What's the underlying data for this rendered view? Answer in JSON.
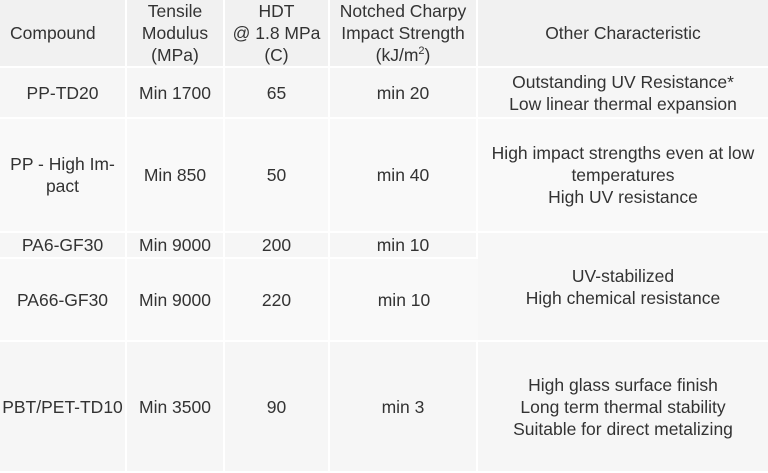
{
  "headers": {
    "compound": "Compound",
    "tensile": [
      "Tensile",
      "Modulus",
      "(MPa)"
    ],
    "hdt": [
      "HDT",
      "@ 1.8 MPa",
      "(C)"
    ],
    "charpy_line1": "Notched Charpy",
    "charpy_line2": "Impact Strength",
    "charpy_unit_base": "(kJ/m",
    "charpy_unit_sup": "2",
    "charpy_unit_close": ")",
    "other": "Other Characteristic"
  },
  "rows": [
    {
      "compound": [
        "PP-TD20"
      ],
      "tensile": "Min 1700",
      "hdt": "65",
      "charpy": "min 20",
      "other": [
        "Outstanding UV Resistance*",
        "Low linear thermal expansion"
      ]
    },
    {
      "compound": [
        "PP - High Im-",
        "pact"
      ],
      "tensile": "Min 850",
      "hdt": "50",
      "charpy": "min 40",
      "other": [
        "High impact strengths even at low",
        "temperatures",
        "High UV resistance"
      ]
    },
    {
      "compound": [
        "PA6-GF30"
      ],
      "tensile": "Min 9000",
      "hdt": "200",
      "charpy": "min 10"
    },
    {
      "compound": [
        "PA66-GF30"
      ],
      "tensile": "Min 9000",
      "hdt": "220",
      "charpy": "min 10"
    },
    {
      "compound": [
        "PBT/PET-TD10"
      ],
      "tensile": "Min 3500",
      "hdt": "90",
      "charpy": "min 3",
      "other": [
        "High glass surface finish",
        "Long term thermal stability",
        "Suitable for direct metalizing"
      ]
    }
  ],
  "merged_other_pa": [
    "UV-stabilized",
    "High chemical resistance"
  ]
}
